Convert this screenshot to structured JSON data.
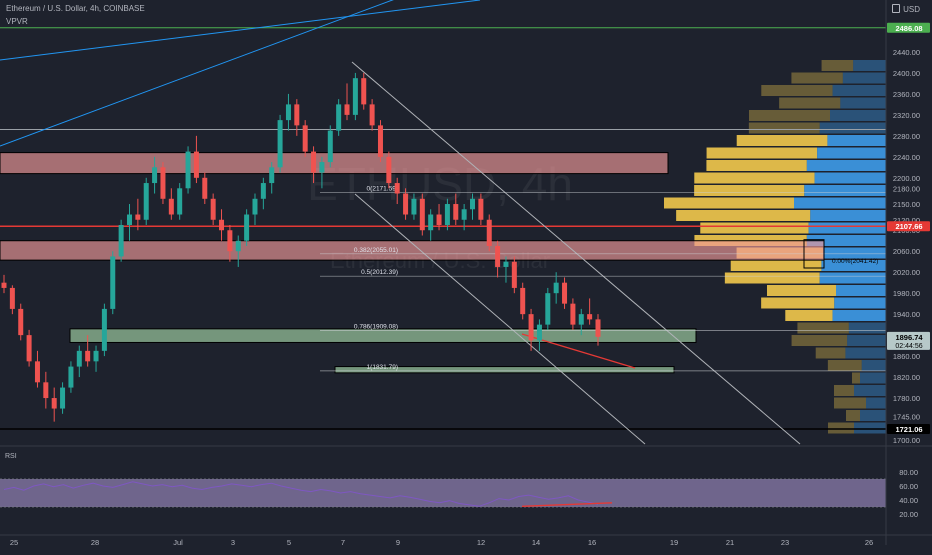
{
  "header": {
    "title": "Ethereum / U.S. Dollar, 4h, COINBASE",
    "indicator": "VPVR",
    "currency": "USD"
  },
  "watermark": {
    "ticker": "ETHUSD, 4h",
    "name": "Ethereum / U.S. Dollar"
  },
  "rsi_label": "RSI",
  "colors": {
    "background": "#1e222d",
    "up": "#26a69a",
    "down": "#ef5350",
    "zone_red": "#ef9a9a",
    "zone_green": "#a5d6a7",
    "vp_yellow": "#f2c94c",
    "vp_blue": "#3d9be9",
    "rsi_band": "#b39ddb"
  },
  "chart_data": {
    "type": "candlestick",
    "x_tick_labels": [
      "25",
      "28",
      "Jul",
      "3",
      "5",
      "7",
      "9",
      "12",
      "14",
      "16",
      "19",
      "21",
      "23",
      "26"
    ],
    "price_axis": {
      "min": 1700,
      "max": 2520,
      "ticks": [
        2440,
        2400,
        2360,
        2320,
        2280,
        2240,
        2200,
        2180,
        2150,
        2120,
        2100,
        2060,
        2020,
        1980,
        1940,
        1900,
        1860,
        1820,
        1780,
        1745,
        1700
      ]
    },
    "price_tick_labels": [
      "2440.00",
      "2400.00",
      "2360.00",
      "2320.00",
      "2280.00",
      "2240.00",
      "2200.00",
      "2180.00",
      "2150.00",
      "2120.00",
      "2100.00",
      "2060.00",
      "2020.00",
      "1980.00",
      "1940.00",
      "1900.00",
      "1860.00",
      "1820.00",
      "1780.00",
      "1745.00",
      "1700.00"
    ],
    "price_badges": [
      {
        "label": "2486.08",
        "value": 2486.08,
        "color": "#4caf50"
      },
      {
        "label": "2107.66",
        "value": 2107.66,
        "color": "#e53935"
      },
      {
        "label": "1896.74",
        "value": 1896.74,
        "color": "#b7c9c9",
        "sublabel": "02:44:56"
      },
      {
        "label": "1721.06",
        "value": 1721.06,
        "color": "#000000"
      }
    ],
    "fib_levels": [
      {
        "label": "0(2171.59)",
        "value": 2171.59
      },
      {
        "label": "0.382(2055.01)",
        "value": 2055.01
      },
      {
        "label": "0.5(2012.39)",
        "value": 2012.39
      },
      {
        "label": "0.786(1909.08)",
        "value": 1909.08
      },
      {
        "label": "1(1831.79)",
        "value": 1831.79
      }
    ],
    "current_marker_label": "0.00%(2041.42)",
    "zones": [
      {
        "type": "resistance",
        "top": 2248,
        "bottom": 2208
      },
      {
        "type": "resistance",
        "top": 2080,
        "bottom": 2043
      },
      {
        "type": "support",
        "top": 1912,
        "bottom": 1886
      },
      {
        "type": "support",
        "top": 1840,
        "bottom": 1828
      }
    ],
    "rsi": {
      "axis_ticks": [
        80,
        60,
        40,
        20
      ],
      "tick_labels": [
        "80.00",
        "60.00",
        "40.00",
        "20.00"
      ],
      "band": [
        30,
        70
      ],
      "values": [
        55,
        58,
        54,
        60,
        63,
        59,
        62,
        57,
        61,
        64,
        60,
        58,
        62,
        66,
        63,
        60,
        62,
        59,
        61,
        57,
        55,
        58,
        60,
        63,
        61,
        59,
        62,
        64,
        60,
        57,
        54,
        52,
        55,
        53,
        50,
        52,
        49,
        47,
        45,
        43,
        46,
        44,
        41,
        38,
        36,
        39,
        35,
        33,
        31,
        36,
        42,
        40,
        45,
        47,
        44,
        41,
        43,
        46,
        40,
        37,
        34
      ]
    },
    "candles": [
      [
        2000,
        2015,
        1980,
        1990
      ],
      [
        1990,
        1995,
        1940,
        1950
      ],
      [
        1950,
        1960,
        1890,
        1900
      ],
      [
        1900,
        1910,
        1840,
        1850
      ],
      [
        1850,
        1870,
        1800,
        1810
      ],
      [
        1810,
        1830,
        1760,
        1780
      ],
      [
        1780,
        1800,
        1735,
        1760
      ],
      [
        1760,
        1810,
        1750,
        1800
      ],
      [
        1800,
        1850,
        1790,
        1840
      ],
      [
        1840,
        1880,
        1820,
        1870
      ],
      [
        1870,
        1900,
        1840,
        1850
      ],
      [
        1850,
        1880,
        1830,
        1870
      ],
      [
        1870,
        1960,
        1860,
        1950
      ],
      [
        1950,
        2060,
        1940,
        2050
      ],
      [
        2050,
        2120,
        2040,
        2110
      ],
      [
        2110,
        2150,
        2080,
        2130
      ],
      [
        2130,
        2160,
        2100,
        2120
      ],
      [
        2120,
        2200,
        2110,
        2190
      ],
      [
        2190,
        2240,
        2170,
        2220
      ],
      [
        2220,
        2230,
        2150,
        2160
      ],
      [
        2160,
        2180,
        2120,
        2130
      ],
      [
        2130,
        2190,
        2120,
        2180
      ],
      [
        2180,
        2260,
        2170,
        2250
      ],
      [
        2250,
        2280,
        2190,
        2200
      ],
      [
        2200,
        2210,
        2150,
        2160
      ],
      [
        2160,
        2170,
        2110,
        2120
      ],
      [
        2120,
        2140,
        2080,
        2100
      ],
      [
        2100,
        2110,
        2040,
        2060
      ],
      [
        2060,
        2090,
        2030,
        2080
      ],
      [
        2080,
        2140,
        2070,
        2130
      ],
      [
        2130,
        2170,
        2110,
        2160
      ],
      [
        2160,
        2200,
        2140,
        2190
      ],
      [
        2190,
        2230,
        2170,
        2220
      ],
      [
        2220,
        2320,
        2210,
        2310
      ],
      [
        2310,
        2360,
        2290,
        2340
      ],
      [
        2340,
        2350,
        2280,
        2300
      ],
      [
        2300,
        2310,
        2240,
        2250
      ],
      [
        2250,
        2260,
        2190,
        2210
      ],
      [
        2210,
        2240,
        2180,
        2230
      ],
      [
        2230,
        2300,
        2220,
        2290
      ],
      [
        2290,
        2350,
        2280,
        2340
      ],
      [
        2340,
        2380,
        2310,
        2320
      ],
      [
        2320,
        2400,
        2310,
        2390
      ],
      [
        2390,
        2400,
        2330,
        2340
      ],
      [
        2340,
        2350,
        2290,
        2300
      ],
      [
        2300,
        2310,
        2230,
        2240
      ],
      [
        2240,
        2250,
        2180,
        2190
      ],
      [
        2190,
        2200,
        2150,
        2170
      ],
      [
        2170,
        2180,
        2120,
        2130
      ],
      [
        2130,
        2170,
        2120,
        2160
      ],
      [
        2160,
        2170,
        2090,
        2100
      ],
      [
        2100,
        2140,
        2080,
        2130
      ],
      [
        2130,
        2150,
        2100,
        2110
      ],
      [
        2110,
        2160,
        2100,
        2150
      ],
      [
        2150,
        2170,
        2110,
        2120
      ],
      [
        2120,
        2150,
        2100,
        2140
      ],
      [
        2140,
        2170,
        2120,
        2160
      ],
      [
        2160,
        2170,
        2110,
        2120
      ],
      [
        2120,
        2130,
        2060,
        2070
      ],
      [
        2070,
        2080,
        2010,
        2030
      ],
      [
        2030,
        2050,
        2000,
        2040
      ],
      [
        2040,
        2050,
        1980,
        1990
      ],
      [
        1990,
        2000,
        1930,
        1940
      ],
      [
        1940,
        1950,
        1870,
        1890
      ],
      [
        1890,
        1930,
        1870,
        1920
      ],
      [
        1920,
        1990,
        1910,
        1980
      ],
      [
        1980,
        2020,
        1960,
        2000
      ],
      [
        2000,
        2010,
        1950,
        1960
      ],
      [
        1960,
        1970,
        1910,
        1920
      ],
      [
        1920,
        1950,
        1900,
        1940
      ],
      [
        1940,
        1970,
        1920,
        1930
      ],
      [
        1930,
        1940,
        1880,
        1896.74
      ]
    ]
  }
}
